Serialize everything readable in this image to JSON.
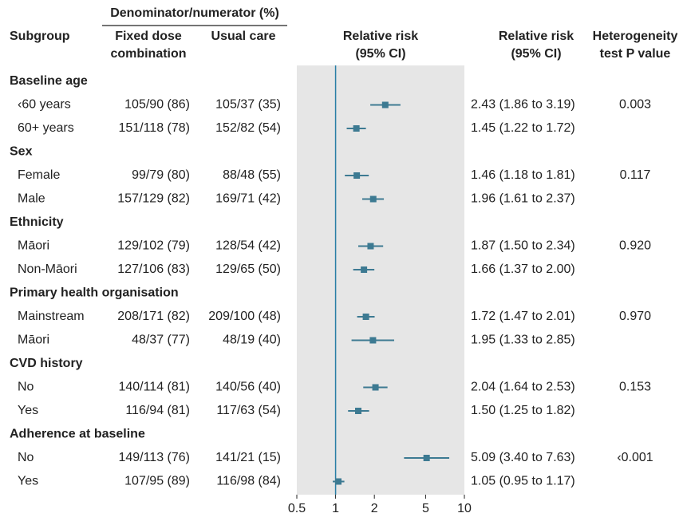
{
  "chart_data": {
    "type": "forest",
    "header": {
      "group": "Denominator/numerator (%)",
      "subgroup": "Subgroup",
      "fixed": [
        "Fixed dose",
        "combination"
      ],
      "usual": "Usual care",
      "plot": [
        "Relative risk",
        "(95% CI)"
      ],
      "rr": [
        "Relative risk",
        "(95% CI)"
      ],
      "p": [
        "Heterogeneity",
        "test P value"
      ]
    },
    "xscale": "log",
    "xlim": [
      0.5,
      10
    ],
    "xticks": [
      0.5,
      1,
      2,
      5,
      10
    ],
    "color": "#3d7a92",
    "line_color": "#2a7fa6",
    "shade": "#e6e6e6",
    "groups": [
      {
        "name": "Baseline age",
        "p": "0.003",
        "rows": [
          {
            "label": "‹60 years",
            "fixed": "105/90 (86)",
            "usual": "105/37 (35)",
            "rr": 2.43,
            "lo": 1.86,
            "hi": 3.19,
            "rr_label": "2.43 (1.86 to 3.19)"
          },
          {
            "label": "60+ years",
            "fixed": "151/118 (78)",
            "usual": "152/82 (54)",
            "rr": 1.45,
            "lo": 1.22,
            "hi": 1.72,
            "rr_label": "1.45 (1.22 to 1.72)"
          }
        ]
      },
      {
        "name": "Sex",
        "p": "0.117",
        "rows": [
          {
            "label": "Female",
            "fixed": "99/79 (80)",
            "usual": "88/48 (55)",
            "rr": 1.46,
            "lo": 1.18,
            "hi": 1.81,
            "rr_label": "1.46 (1.18 to 1.81)"
          },
          {
            "label": "Male",
            "fixed": "157/129 (82)",
            "usual": "169/71 (42)",
            "rr": 1.96,
            "lo": 1.61,
            "hi": 2.37,
            "rr_label": "1.96 (1.61 to 2.37)"
          }
        ]
      },
      {
        "name": "Ethnicity",
        "p": "0.920",
        "rows": [
          {
            "label": "Māori",
            "fixed": "129/102 (79)",
            "usual": "128/54 (42)",
            "rr": 1.87,
            "lo": 1.5,
            "hi": 2.34,
            "rr_label": "1.87 (1.50 to 2.34)"
          },
          {
            "label": "Non-Māori",
            "fixed": "127/106 (83)",
            "usual": "129/65 (50)",
            "rr": 1.66,
            "lo": 1.37,
            "hi": 2.0,
            "rr_label": "1.66 (1.37 to 2.00)"
          }
        ]
      },
      {
        "name": "Primary health organisation",
        "p": "0.970",
        "rows": [
          {
            "label": "Mainstream",
            "fixed": "208/171 (82)",
            "usual": "209/100 (48)",
            "rr": 1.72,
            "lo": 1.47,
            "hi": 2.01,
            "rr_label": "1.72 (1.47 to 2.01)"
          },
          {
            "label": "Māori",
            "fixed": "48/37 (77)",
            "usual": "48/19 (40)",
            "rr": 1.95,
            "lo": 1.33,
            "hi": 2.85,
            "rr_label": "1.95 (1.33 to 2.85)"
          }
        ]
      },
      {
        "name": "CVD history",
        "p": "0.153",
        "rows": [
          {
            "label": "No",
            "fixed": "140/114 (81)",
            "usual": "140/56 (40)",
            "rr": 2.04,
            "lo": 1.64,
            "hi": 2.53,
            "rr_label": "2.04 (1.64 to 2.53)"
          },
          {
            "label": "Yes",
            "fixed": "116/94 (81)",
            "usual": "117/63 (54)",
            "rr": 1.5,
            "lo": 1.25,
            "hi": 1.82,
            "rr_label": "1.50 (1.25 to 1.82)"
          }
        ]
      },
      {
        "name": "Adherence at baseline",
        "p": "‹0.001",
        "rows": [
          {
            "label": "No",
            "fixed": "149/113 (76)",
            "usual": "141/21 (15)",
            "rr": 5.09,
            "lo": 3.4,
            "hi": 7.63,
            "rr_label": "5.09 (3.40 to 7.63)"
          },
          {
            "label": "Yes",
            "fixed": "107/95 (89)",
            "usual": "116/98 (84)",
            "rr": 1.05,
            "lo": 0.95,
            "hi": 1.17,
            "rr_label": "1.05 (0.95 to 1.17)"
          }
        ]
      }
    ]
  }
}
